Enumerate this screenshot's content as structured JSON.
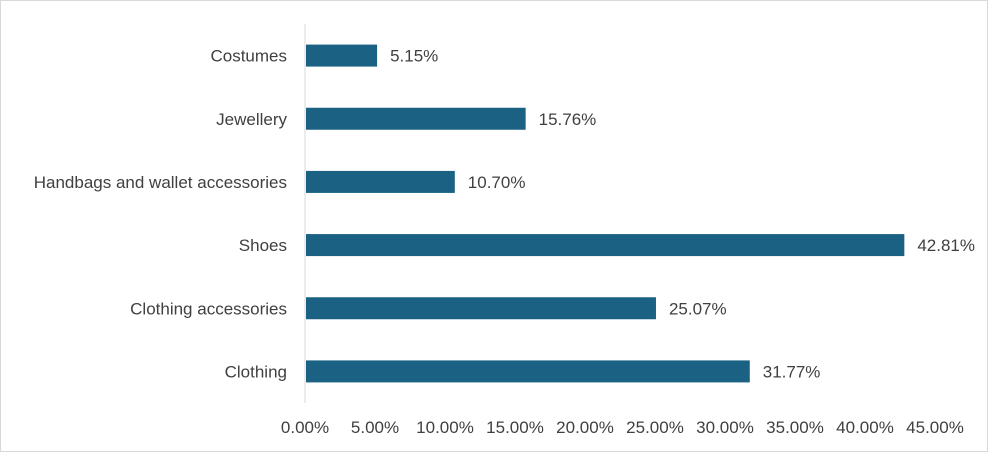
{
  "chart_data": {
    "type": "bar",
    "orientation": "horizontal",
    "categories": [
      "Costumes",
      "Jewellery",
      "Handbags and wallet accessories",
      "Shoes",
      "Clothing accessories",
      "Clothing"
    ],
    "values": [
      5.15,
      15.76,
      10.7,
      42.81,
      25.07,
      31.77
    ],
    "value_labels": [
      "5.15%",
      "15.76%",
      "10.70%",
      "42.81%",
      "25.07%",
      "31.77%"
    ],
    "x_ticks": [
      "0.00%",
      "5.00%",
      "10.00%",
      "15.00%",
      "20.00%",
      "25.00%",
      "30.00%",
      "35.00%",
      "40.00%",
      "45.00%"
    ],
    "xlim": [
      0,
      45
    ],
    "bar_color": "#1a6184",
    "grid": false,
    "legend": "none"
  }
}
